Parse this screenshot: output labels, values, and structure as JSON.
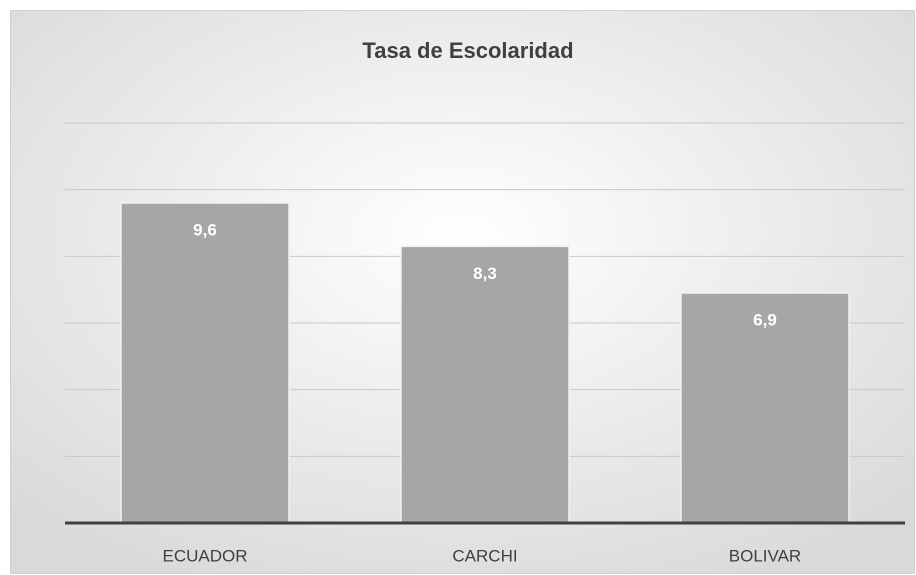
{
  "chart_data": {
    "type": "bar",
    "title": "Tasa de Escolaridad",
    "categories": [
      "ECUADOR",
      "CARCHI",
      "BOLIVAR"
    ],
    "values": [
      9.6,
      8.3,
      6.9
    ],
    "value_labels": [
      "9,6",
      "8,3",
      "6,9"
    ],
    "color": "#a6a6a6",
    "ylim": [
      0,
      12
    ],
    "yticks": [
      0,
      2,
      4,
      6,
      8,
      10,
      12
    ],
    "grid": true
  }
}
